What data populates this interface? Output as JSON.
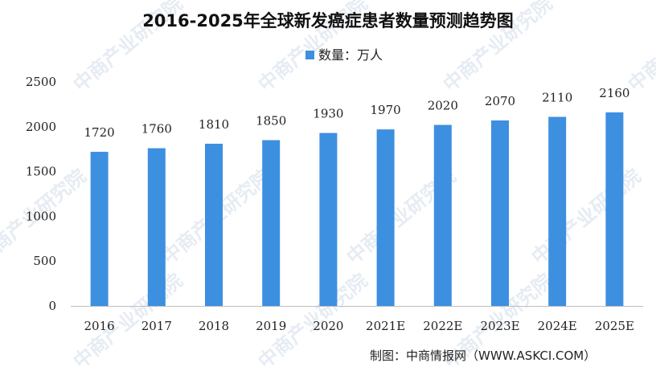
{
  "chart_data": {
    "type": "bar",
    "title": "2016-2025年全球新发癌症患者数量预测趋势图",
    "categories": [
      "2016",
      "2017",
      "2018",
      "2019",
      "2020",
      "2021E",
      "2022E",
      "2023E",
      "2024E",
      "2025E"
    ],
    "series": [
      {
        "name": "数量：万人",
        "values": [
          1720,
          1760,
          1810,
          1850,
          1930,
          1970,
          2020,
          2070,
          2110,
          2160
        ]
      }
    ],
    "ylim": [
      0,
      2500
    ],
    "yticks": [
      "0",
      "500",
      "1000",
      "1500",
      "2000",
      "2500"
    ],
    "xlabel": "",
    "ylabel": "",
    "grid": false,
    "legend_position": "top",
    "bar_color": "#3d8fe0",
    "data_labels": true
  },
  "source": "制图：中商情报网（WWW.ASKCI.COM）",
  "watermark": "中商产业研究院"
}
